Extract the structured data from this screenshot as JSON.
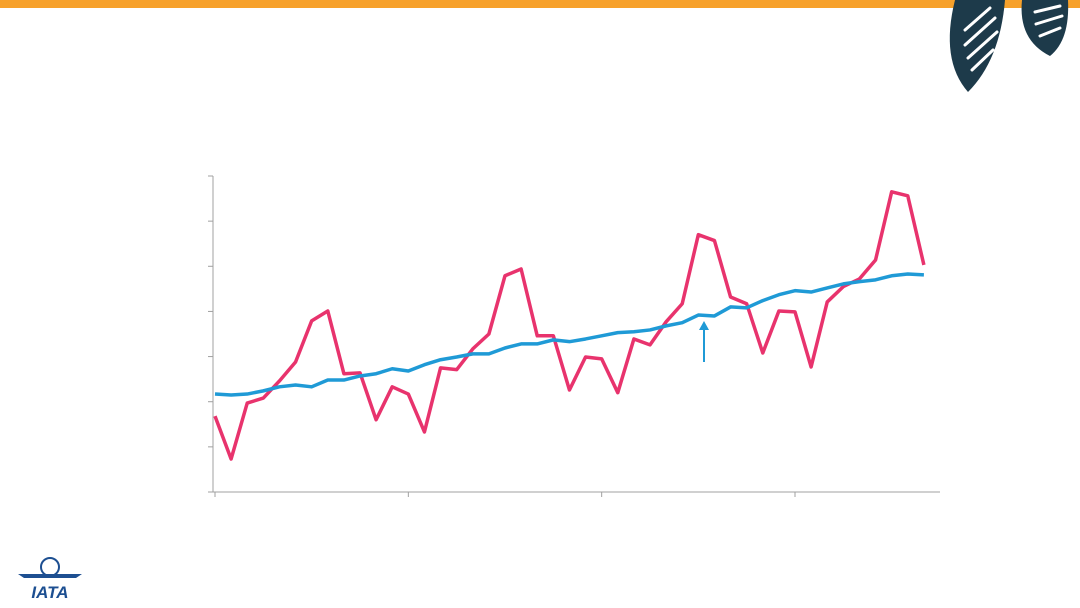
{
  "logo": {
    "text": "IATA"
  },
  "chart_data": {
    "type": "line",
    "x": [
      0,
      1,
      2,
      3,
      4,
      5,
      6,
      7,
      8,
      9,
      10,
      11,
      12,
      13,
      14,
      15,
      16,
      17,
      18,
      19,
      20,
      21,
      22,
      23,
      24,
      25,
      26,
      27,
      28,
      29,
      30,
      31,
      32,
      33,
      34,
      35,
      36,
      37,
      38,
      39,
      40,
      41,
      42,
      43,
      44
    ],
    "xlim": [
      0,
      45
    ],
    "xticks": [
      0,
      12,
      24,
      36
    ],
    "ylim": [
      0,
      7
    ],
    "yticks": [
      0,
      1,
      2,
      3,
      4,
      5,
      6,
      7
    ],
    "series": [
      {
        "color": "#e8336d",
        "values": [
          1.68,
          0.73,
          1.97,
          2.08,
          2.46,
          2.88,
          3.79,
          4.01,
          2.62,
          2.64,
          1.6,
          2.33,
          2.17,
          1.33,
          2.75,
          2.71,
          3.17,
          3.5,
          4.79,
          4.94,
          3.46,
          3.46,
          2.26,
          2.99,
          2.95,
          2.2,
          3.39,
          3.26,
          3.77,
          4.17,
          5.7,
          5.57,
          4.32,
          4.17,
          3.08,
          4.01,
          3.99,
          2.77,
          4.21,
          4.55,
          4.72,
          5.14,
          6.65,
          6.56,
          5.03
        ]
      },
      {
        "color": "#1f9ad6",
        "values": [
          2.17,
          2.15,
          2.17,
          2.24,
          2.33,
          2.37,
          2.33,
          2.48,
          2.48,
          2.57,
          2.62,
          2.73,
          2.68,
          2.82,
          2.93,
          2.99,
          3.06,
          3.06,
          3.19,
          3.28,
          3.28,
          3.37,
          3.33,
          3.39,
          3.46,
          3.53,
          3.55,
          3.59,
          3.68,
          3.75,
          3.92,
          3.9,
          4.1,
          4.08,
          4.24,
          4.37,
          4.46,
          4.43,
          4.52,
          4.61,
          4.66,
          4.7,
          4.79,
          4.83,
          4.81
        ]
      }
    ]
  }
}
